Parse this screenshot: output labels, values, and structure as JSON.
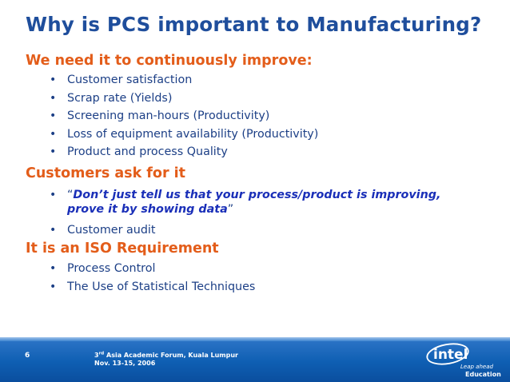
{
  "title": "Why is PCS important to Manufacturing?",
  "sections": [
    {
      "heading": "We need it to continuously improve:",
      "bullets": [
        "Customer satisfaction",
        "Scrap rate (Yields)",
        "Screening man-hours (Productivity)",
        "Loss of equipment availability (Productivity)",
        "Product and process Quality"
      ]
    },
    {
      "heading": "Customers ask for it",
      "quote_open": "“",
      "quote": "Don’t just tell us that your process/product is improving, prove it by showing data",
      "quote_close": "”",
      "bullets": [
        "Customer audit"
      ]
    },
    {
      "heading": "It is an ISO Requirement",
      "bullets": [
        "Process Control",
        "The Use of Statistical Techniques"
      ]
    }
  ],
  "footer": {
    "page_number": "6",
    "event_ordinal": "3",
    "event_ordinal_suffix": "rd",
    "event_name": " Asia Academic Forum, Kuala Lumpur",
    "event_dates": "Nov. 13-15, 2006"
  },
  "logo": {
    "brand": "intel",
    "tagline": "Leap ahead",
    "label": "Education"
  },
  "colors": {
    "title": "#1f4e9c",
    "heading": "#e35d1a",
    "body": "#1c3f86",
    "quote": "#1a2fb8",
    "footer": "#0f5fb3"
  }
}
